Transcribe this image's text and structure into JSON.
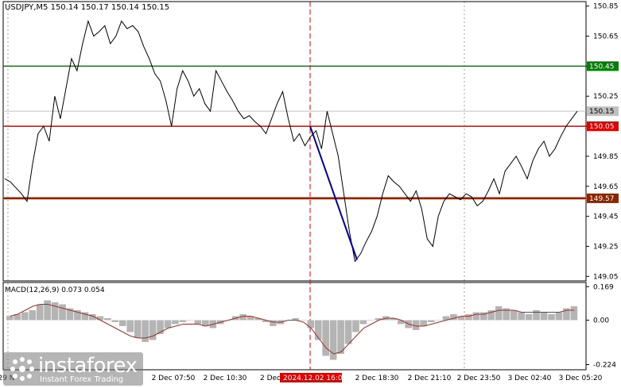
{
  "window": {
    "symbol_line": "USDJPY,M5  150.14 150.17 150.14 150.15",
    "macd_line": "MACD(12,26,9) 0.073 0.054"
  },
  "branding": {
    "logo_text": "instaforex",
    "tagline": "Instant Forex Trading"
  },
  "chart_data": {
    "type": "line",
    "title": "USDJPY,M5",
    "ohlc_header": {
      "open": 150.14,
      "high": 150.17,
      "low": 150.14,
      "close": 150.15
    },
    "y_ticks": [
      150.85,
      150.65,
      150.45,
      150.25,
      150.05,
      149.85,
      149.65,
      149.45,
      149.25,
      149.05
    ],
    "ylim": [
      149.02,
      150.88
    ],
    "x_ticks": [
      "29 N",
      "2 Dec 07:50",
      "2 Dec 10:30",
      "2 Dec",
      "2024.12.02 16:00",
      "2 Dec 18:30",
      "2 Dec 21:10",
      "2 Dec 23:50",
      "3 Dec 02:40",
      "3 Dec 05:20"
    ],
    "price_labels": [
      {
        "value": "150.45",
        "color": "#008000"
      },
      {
        "value": "150.15",
        "color": "#c0c0c0"
      },
      {
        "value": "150.05",
        "color": "#e00000"
      },
      {
        "value": "149.57",
        "color": "#8b2500"
      }
    ],
    "levels": [
      {
        "price": 150.45,
        "color": "#008000"
      },
      {
        "price": 150.05,
        "color": "#e00000"
      },
      {
        "price": 149.57,
        "color": "#8b2500"
      }
    ],
    "series": [
      {
        "color": "#000000",
        "values": [
          149.7,
          149.68,
          149.64,
          149.6,
          149.55,
          149.8,
          150.0,
          150.05,
          149.95,
          150.25,
          150.1,
          150.3,
          150.5,
          150.42,
          150.6,
          150.75,
          150.65,
          150.68,
          150.72,
          150.6,
          150.65,
          150.75,
          150.7,
          150.72,
          150.68,
          150.58,
          150.5,
          150.4,
          150.35,
          150.22,
          150.05,
          150.3,
          150.42,
          150.35,
          150.25,
          150.3,
          150.2,
          150.15,
          150.42,
          150.35,
          150.28,
          150.22,
          150.15,
          150.1,
          150.12,
          150.08,
          150.05,
          150.0,
          150.1,
          150.2,
          150.28,
          150.1,
          149.95,
          150.0,
          149.92,
          149.98,
          150.02,
          149.9,
          150.15,
          150.0,
          149.85,
          149.6,
          149.35,
          149.15,
          149.2,
          149.28,
          149.35,
          149.45,
          149.6,
          149.72,
          149.68,
          149.65,
          149.6,
          149.55,
          149.62,
          149.5,
          149.3,
          149.25,
          149.45,
          149.55,
          149.6,
          149.58,
          149.56,
          149.6,
          149.58,
          149.52,
          149.55,
          149.62,
          149.7,
          149.6,
          149.75,
          149.8,
          149.85,
          149.78,
          149.7,
          149.82,
          149.9,
          149.95,
          149.85,
          149.9,
          149.98,
          150.05,
          150.1,
          150.15
        ]
      },
      {
        "color": "#0000a0",
        "values": [
          150.05,
          149.16
        ]
      }
    ],
    "macd": {
      "title": "MACD(12,26,9)",
      "main": 0.073,
      "signal": 0.054,
      "y_ticks": [
        0.169,
        0.0,
        -0.224
      ],
      "ylim": [
        -0.25,
        0.19
      ],
      "histogram": [
        0.02,
        0.03,
        0.04,
        0.05,
        0.08,
        0.1,
        0.09,
        0.08,
        0.06,
        0.05,
        0.04,
        0.03,
        0.02,
        0.01,
        -0.01,
        -0.03,
        -0.06,
        -0.09,
        -0.11,
        -0.1,
        -0.07,
        -0.04,
        -0.02,
        -0.01,
        0.0,
        -0.02,
        -0.03,
        -0.04,
        -0.02,
        0.0,
        0.02,
        0.03,
        0.02,
        0.01,
        -0.01,
        -0.03,
        -0.02,
        0.0,
        0.01,
        0.0,
        -0.04,
        -0.1,
        -0.18,
        -0.2,
        -0.17,
        -0.12,
        -0.06,
        -0.02,
        0.0,
        0.01,
        0.02,
        0.01,
        -0.02,
        -0.04,
        -0.05,
        -0.03,
        -0.01,
        0.0,
        0.02,
        0.03,
        0.02,
        0.03,
        0.04,
        0.04,
        0.05,
        0.07,
        0.06,
        0.05,
        0.04,
        0.03,
        0.05,
        0.04,
        0.03,
        0.04,
        0.06,
        0.07
      ],
      "signal_line": [
        0.02,
        0.03,
        0.05,
        0.07,
        0.08,
        0.08,
        0.07,
        0.06,
        0.05,
        0.04,
        0.03,
        0.02,
        0.0,
        -0.02,
        -0.04,
        -0.06,
        -0.08,
        -0.09,
        -0.09,
        -0.08,
        -0.06,
        -0.04,
        -0.03,
        -0.02,
        -0.02,
        -0.02,
        -0.03,
        -0.02,
        -0.01,
        0.0,
        0.01,
        0.02,
        0.02,
        0.01,
        0.0,
        -0.01,
        -0.01,
        0.0,
        0.0,
        -0.01,
        -0.04,
        -0.09,
        -0.14,
        -0.17,
        -0.16,
        -0.12,
        -0.08,
        -0.04,
        -0.02,
        0.0,
        0.01,
        0.01,
        0.0,
        -0.02,
        -0.03,
        -0.03,
        -0.02,
        -0.01,
        0.0,
        0.01,
        0.02,
        0.02,
        0.03,
        0.03,
        0.04,
        0.05,
        0.05,
        0.05,
        0.04,
        0.04,
        0.04,
        0.04,
        0.04,
        0.04,
        0.05,
        0.05
      ]
    }
  }
}
